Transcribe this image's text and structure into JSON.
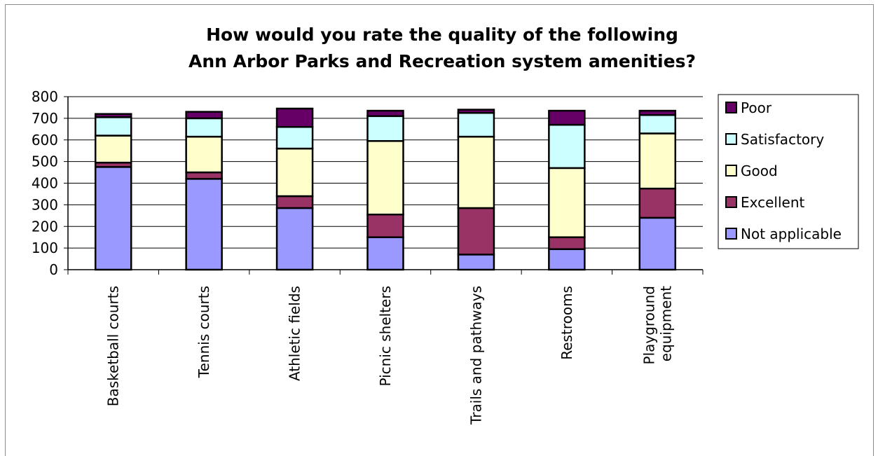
{
  "chart_data": {
    "type": "bar",
    "stacked": true,
    "title_lines": [
      "How would you rate the quality of the following",
      "Ann Arbor Parks and Recreation system amenities?"
    ],
    "categories": [
      [
        "Basketball courts"
      ],
      [
        "Tennis courts"
      ],
      [
        "Athletic fields"
      ],
      [
        "Picnic shelters"
      ],
      [
        "Trails and pathways"
      ],
      [
        "Restrooms"
      ],
      [
        "Playground",
        "equipment"
      ]
    ],
    "series": [
      {
        "name": "Not applicable",
        "color": "#9999ff",
        "values": [
          475,
          420,
          285,
          150,
          70,
          95,
          240
        ]
      },
      {
        "name": "Excellent",
        "color": "#993366",
        "values": [
          20,
          30,
          55,
          105,
          215,
          55,
          135
        ]
      },
      {
        "name": "Good",
        "color": "#ffffcc",
        "values": [
          125,
          165,
          220,
          340,
          330,
          320,
          255
        ]
      },
      {
        "name": "Satisfactory",
        "color": "#ccffff",
        "values": [
          85,
          85,
          100,
          115,
          110,
          200,
          85
        ]
      },
      {
        "name": "Poor",
        "color": "#660066",
        "values": [
          15,
          30,
          85,
          25,
          15,
          65,
          20
        ]
      }
    ],
    "legend_order": [
      "Poor",
      "Satisfactory",
      "Good",
      "Excellent",
      "Not applicable"
    ],
    "yticks": [
      "0",
      "100",
      "200",
      "300",
      "400",
      "500",
      "600",
      "700",
      "800"
    ],
    "ylim": [
      0,
      800
    ],
    "grid": true,
    "legend_position": "right"
  }
}
